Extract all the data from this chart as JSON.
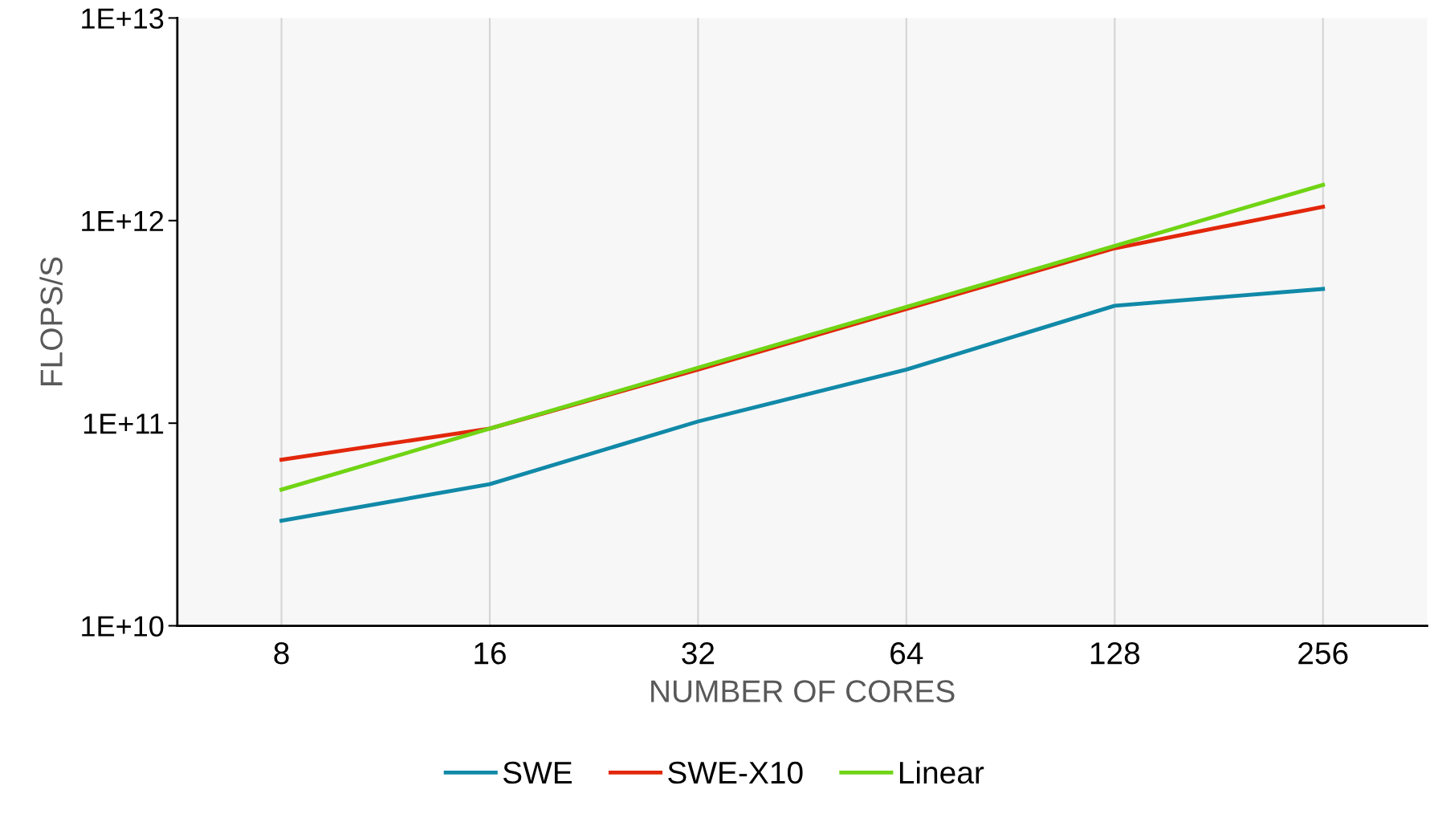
{
  "chart_data": {
    "type": "line",
    "xlabel": "NUMBER OF CORES",
    "ylabel": "FLOPS/S",
    "categories": [
      "8",
      "16",
      "32",
      "64",
      "128",
      "256"
    ],
    "series": [
      {
        "name": "SWE",
        "color": "#1189a8",
        "values": [
          33000000000.0,
          50000000000.0,
          102000000000.0,
          184000000000.0,
          380000000000.0,
          460000000000.0
        ]
      },
      {
        "name": "SWE-X10",
        "color": "#e2270b",
        "values": [
          66000000000.0,
          94000000000.0,
          184000000000.0,
          366000000000.0,
          730000000000.0,
          1170000000000.0
        ]
      },
      {
        "name": "Linear",
        "color": "#70d414",
        "values": [
          47000000000.0,
          94000000000.0,
          188000000000.0,
          375000000000.0,
          750000000000.0,
          1500000000000.0
        ]
      }
    ],
    "log": true,
    "ylim": [
      10000000000.0,
      10000000000000.0
    ],
    "yticks": [
      {
        "value": 10000000000.0,
        "label": "1E+10"
      },
      {
        "value": 100000000000.0,
        "label": "1E+11"
      },
      {
        "value": 1000000000000.0,
        "label": "1E+12"
      },
      {
        "value": 10000000000000.0,
        "label": "1E+13"
      }
    ],
    "grid": "x",
    "legend": "bottom",
    "marker": "none",
    "line_style": "solid"
  }
}
